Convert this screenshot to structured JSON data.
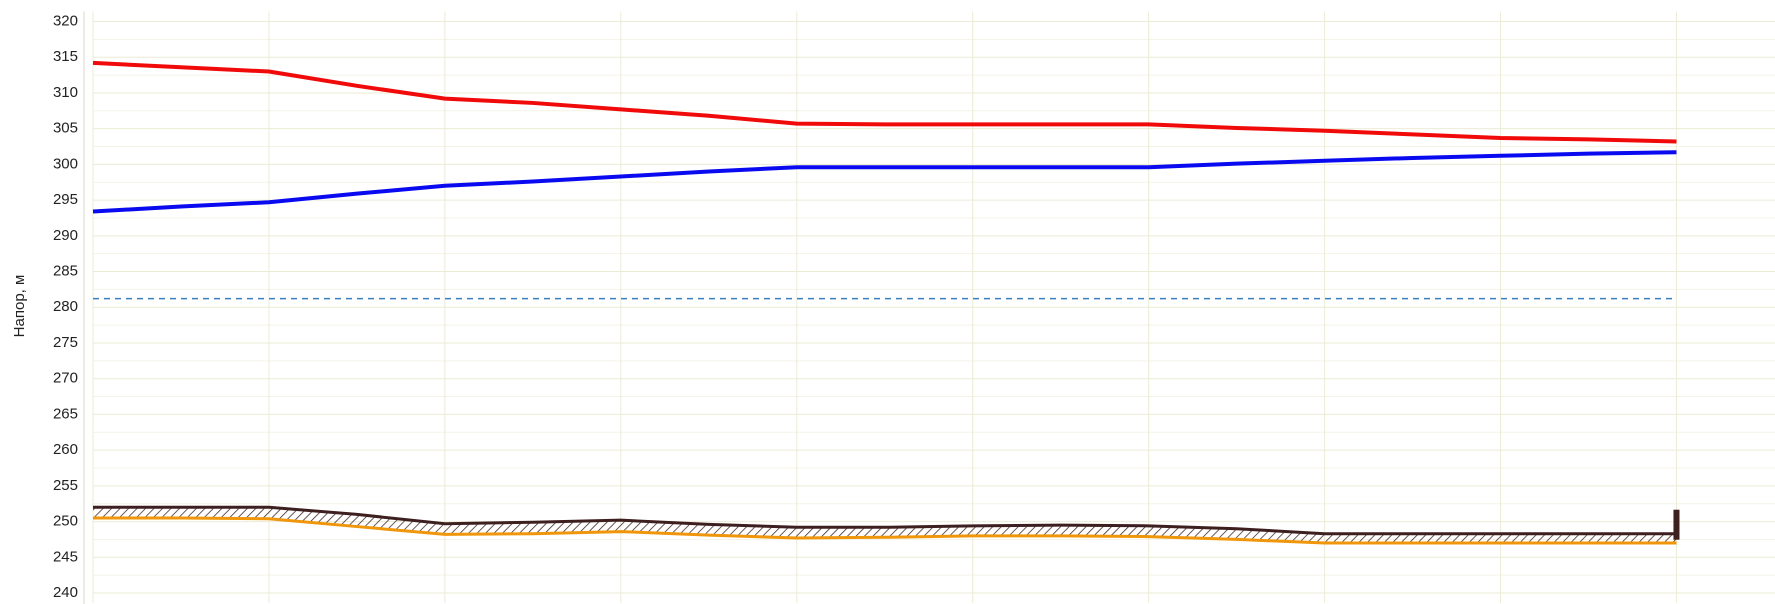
{
  "chart_data": {
    "type": "line",
    "y_label": "Напор, м",
    "xlim": [
      0,
      9.56
    ],
    "xticks": [
      0,
      1,
      2,
      3,
      4,
      5,
      6,
      7,
      8,
      9
    ],
    "ylim": [
      240,
      320
    ],
    "yticks": [
      240,
      245,
      250,
      255,
      260,
      265,
      270,
      275,
      280,
      285,
      290,
      295,
      300,
      305,
      310,
      315,
      320
    ],
    "grid": true,
    "hatch_between": [
      3,
      4
    ],
    "series": [
      {
        "color": "#f00a0a",
        "width": 4,
        "dashed": false,
        "x": [
          0,
          0.5,
          1,
          1.5,
          2,
          2.5,
          3,
          3.5,
          4,
          4.5,
          5,
          5.5,
          6,
          6.5,
          7,
          7.5,
          8,
          8.5,
          9
        ],
        "values": [
          314.2,
          313.6,
          313,
          311,
          309.2,
          308.6,
          307.7,
          306.8,
          305.7,
          305.6,
          305.6,
          305.6,
          305.6,
          305.1,
          304.7,
          304.2,
          303.7,
          303.5,
          303.2
        ]
      },
      {
        "color": "#0a0af0",
        "width": 4,
        "dashed": false,
        "x": [
          0,
          0.5,
          1,
          1.5,
          2,
          2.5,
          3,
          3.5,
          4,
          4.5,
          5,
          5.5,
          6,
          6.5,
          7,
          7.5,
          8,
          8.5,
          9
        ],
        "values": [
          293.4,
          294.1,
          294.7,
          295.9,
          297,
          297.6,
          298.3,
          299,
          299.6,
          299.6,
          299.6,
          299.6,
          299.6,
          300.1,
          300.5,
          300.9,
          301.2,
          301.5,
          301.7
        ]
      },
      {
        "color": "#3a7fc0",
        "width": 1.5,
        "dashed": true,
        "x": [
          0,
          9
        ],
        "values": [
          281.2,
          281.2
        ]
      },
      {
        "color": "#3e1f1f",
        "width": 3,
        "dashed": false,
        "x": [
          0,
          0.5,
          1,
          1.5,
          2,
          2.5,
          3,
          3.5,
          4,
          4.5,
          5,
          5.5,
          6,
          6.5,
          7,
          7.5,
          8,
          8.5,
          9
        ],
        "values": [
          252,
          252,
          252,
          251,
          249.7,
          249.9,
          250.2,
          249.6,
          249.2,
          249.2,
          249.4,
          249.5,
          249.4,
          249,
          248.3,
          248.3,
          248.3,
          248.3,
          248.3
        ]
      },
      {
        "color": "#f0960a",
        "width": 3,
        "dashed": false,
        "x": [
          0,
          0.5,
          1,
          1.5,
          2,
          2.5,
          3,
          3.5,
          4,
          4.5,
          5,
          5.5,
          6,
          6.5,
          7,
          7.5,
          8,
          8.5,
          9
        ],
        "values": [
          250.5,
          250.5,
          250.4,
          249.3,
          248.2,
          248.3,
          248.6,
          248.1,
          247.7,
          247.8,
          248,
          248,
          247.9,
          247.5,
          247,
          247,
          247,
          247,
          247
        ]
      }
    ]
  }
}
